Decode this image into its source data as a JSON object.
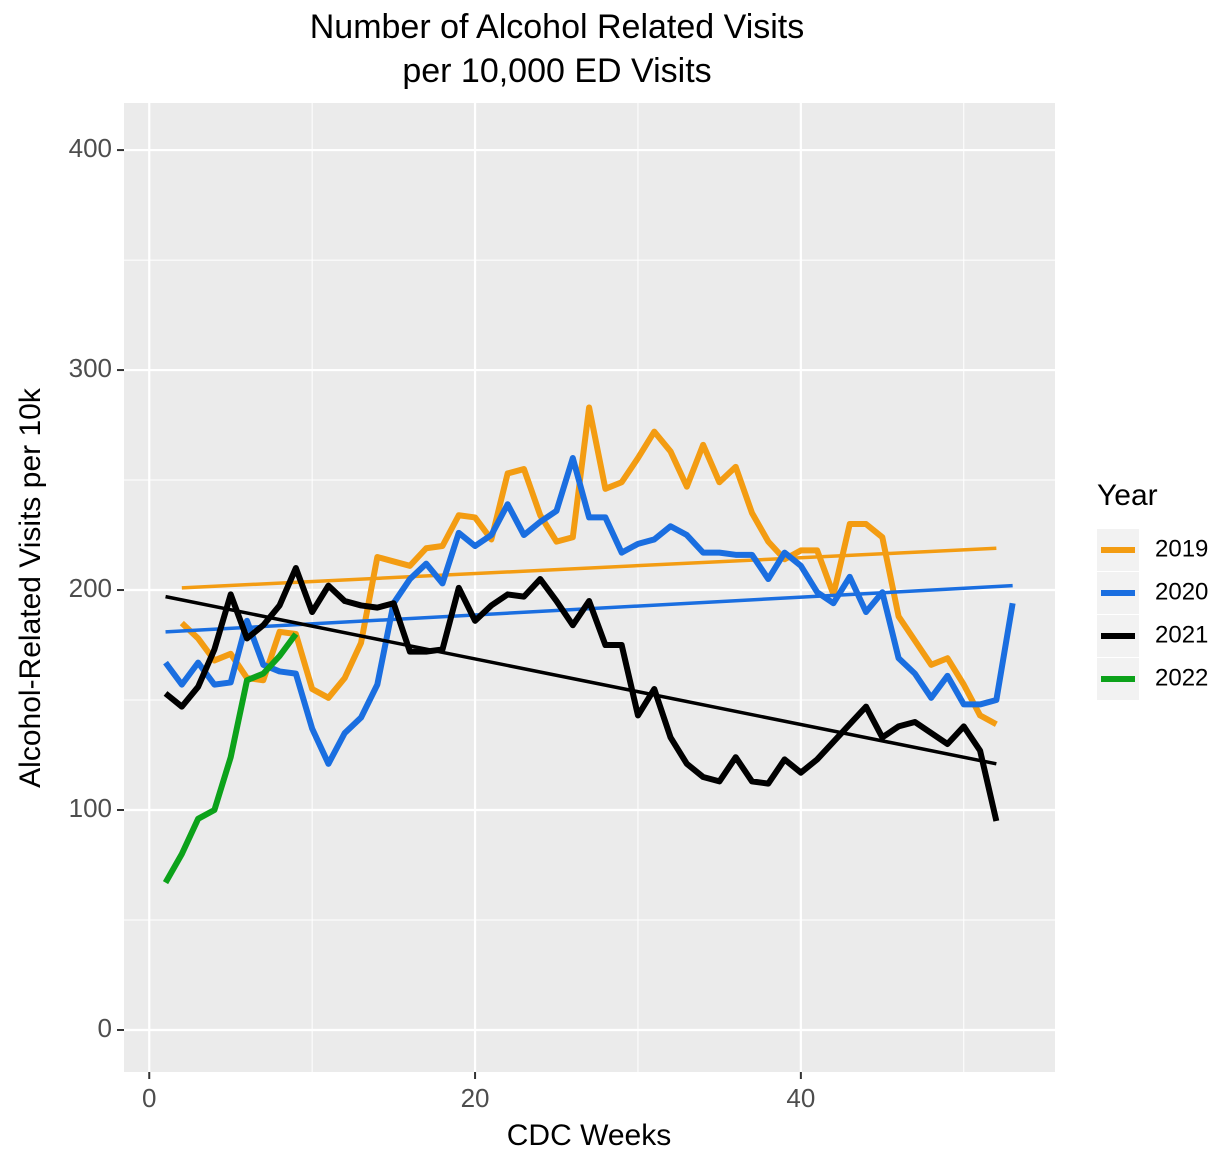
{
  "chart_data": {
    "type": "line",
    "title": [
      "Number of Alcohol Related Visits",
      "per 10,000 ED Visits"
    ],
    "x_label": "CDC Weeks",
    "y_label": "Alcohol-Related Visits per 10k",
    "legend_title": "Year",
    "legend_position": "right",
    "xlim": [
      -1.55,
      55.6
    ],
    "ylim": [
      -19.1,
      421.4
    ],
    "xticks": [
      0,
      20,
      40
    ],
    "yticks": [
      0,
      100,
      200,
      300,
      400
    ],
    "minor_xticks": [
      10,
      30,
      50
    ],
    "minor_yticks": [
      50,
      150,
      250,
      350
    ],
    "grid": true,
    "series": [
      {
        "name": "2019",
        "color": "#f39c12",
        "x": [
          2,
          3,
          4,
          5,
          6,
          7,
          8,
          9,
          10,
          11,
          12,
          13,
          14,
          15,
          16,
          17,
          18,
          19,
          20,
          21,
          22,
          23,
          24,
          25,
          26,
          27,
          28,
          29,
          30,
          31,
          32,
          33,
          34,
          35,
          36,
          37,
          38,
          39,
          40,
          41,
          42,
          43,
          44,
          45,
          46,
          47,
          48,
          49,
          50,
          51,
          52
        ],
        "values": [
          185,
          178,
          168,
          171,
          160,
          159,
          181,
          180,
          155,
          151,
          160,
          176,
          215,
          213,
          211,
          219,
          220,
          234,
          233,
          223,
          253,
          255,
          234,
          222,
          224,
          283,
          246,
          249,
          260,
          272,
          263,
          247,
          266,
          249,
          256,
          235,
          222,
          214,
          218,
          218,
          198,
          230,
          230,
          224,
          188,
          177,
          166,
          169,
          157,
          143,
          139
        ],
        "trend": {
          "x": [
            2,
            52
          ],
          "y": [
            201,
            219
          ]
        }
      },
      {
        "name": "2020",
        "color": "#1a6ee0",
        "x": [
          1,
          2,
          3,
          4,
          5,
          6,
          7,
          8,
          9,
          10,
          11,
          12,
          13,
          14,
          15,
          16,
          17,
          18,
          19,
          20,
          21,
          22,
          23,
          24,
          25,
          26,
          27,
          28,
          29,
          30,
          31,
          32,
          33,
          34,
          35,
          36,
          37,
          38,
          39,
          40,
          41,
          42,
          43,
          44,
          45,
          46,
          47,
          48,
          49,
          50,
          51,
          52,
          53
        ],
        "values": [
          167,
          157,
          167,
          157,
          158,
          186,
          166,
          163,
          162,
          137,
          121,
          135,
          142,
          157,
          194,
          205,
          212,
          203,
          226,
          220,
          225,
          239,
          225,
          231,
          236,
          260,
          233,
          233,
          217,
          221,
          223,
          229,
          225,
          217,
          217,
          216,
          216,
          205,
          217,
          211,
          199,
          194,
          206,
          190,
          199,
          169,
          162,
          151,
          161,
          148,
          148,
          150,
          194
        ],
        "trend": {
          "x": [
            1,
            53
          ],
          "y": [
            181,
            202
          ]
        }
      },
      {
        "name": "2021",
        "color": "#000000",
        "x": [
          1,
          2,
          3,
          4,
          5,
          6,
          7,
          8,
          9,
          10,
          11,
          12,
          13,
          14,
          15,
          16,
          17,
          18,
          19,
          20,
          21,
          22,
          23,
          24,
          25,
          26,
          27,
          28,
          29,
          30,
          31,
          32,
          33,
          34,
          35,
          36,
          37,
          38,
          39,
          40,
          41,
          42,
          43,
          44,
          45,
          46,
          47,
          48,
          49,
          50,
          51,
          52
        ],
        "values": [
          153,
          147,
          156,
          173,
          198,
          178,
          184,
          193,
          210,
          190,
          202,
          195,
          193,
          192,
          194,
          172,
          172,
          173,
          201,
          186,
          193,
          198,
          197,
          205,
          195,
          184,
          195,
          175,
          175,
          143,
          155,
          133,
          121,
          115,
          113,
          124,
          113,
          112,
          123,
          117,
          123,
          131,
          139,
          147,
          133,
          138,
          140,
          135,
          130,
          138,
          127,
          95
        ],
        "trend": {
          "x": [
            1,
            52
          ],
          "y": [
            197,
            121
          ]
        }
      },
      {
        "name": "2022",
        "color": "#0ca21a",
        "x": [
          1,
          2,
          3,
          4,
          5,
          6,
          7,
          8,
          9
        ],
        "values": [
          67,
          80,
          96,
          100,
          124,
          159,
          162,
          170,
          180
        ]
      }
    ]
  }
}
